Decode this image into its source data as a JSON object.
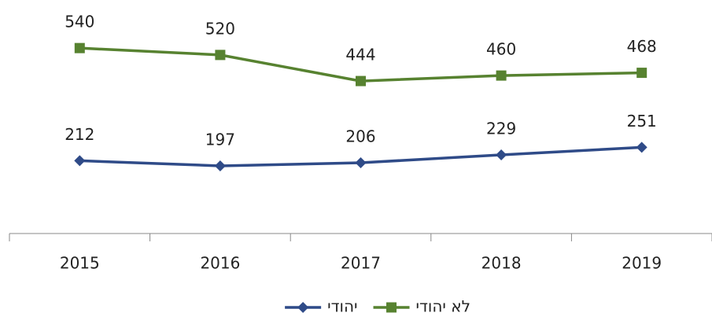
{
  "chart_data": {
    "type": "line",
    "categories": [
      "2015",
      "2016",
      "2017",
      "2018",
      "2019"
    ],
    "series": [
      {
        "name": "לא יהודי",
        "color": "#578230",
        "marker": "square",
        "values": [
          540,
          520,
          444,
          460,
          468
        ]
      },
      {
        "name": "יהודי",
        "color": "#2f4b88",
        "marker": "diamond",
        "values": [
          212,
          197,
          206,
          229,
          251
        ]
      }
    ],
    "ylim": [
      0,
      680
    ],
    "legend": "bottom"
  }
}
